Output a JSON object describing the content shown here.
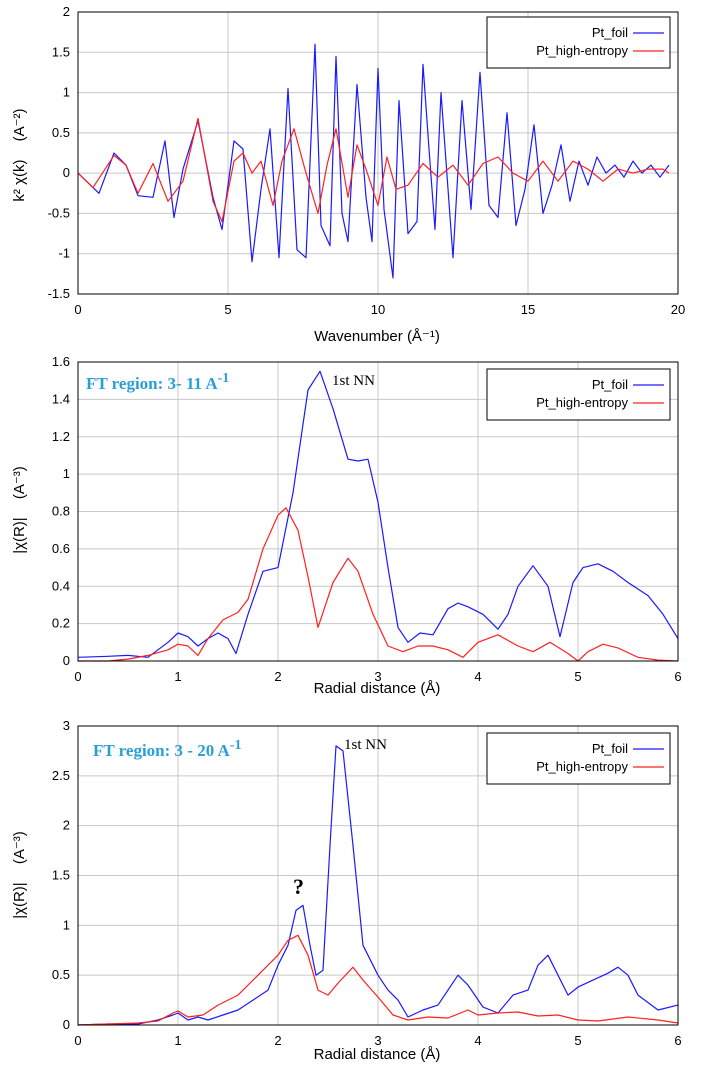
{
  "colors": {
    "pt_foil": "#1a1aff",
    "pt_high_entropy": "#ff2020",
    "grid": "#c8c8c8",
    "region_label": "#2a9fd6"
  },
  "legend": {
    "series1": "Pt_foil",
    "series2": "Pt_high-entropy"
  },
  "chart_data": [
    {
      "type": "line",
      "title": "",
      "xlabel": "Wavenumber   (Å⁻¹)",
      "ylabel_main": "k² χ(k)",
      "ylabel_unit": "(A⁻²)",
      "xlim": [
        0,
        20
      ],
      "ylim": [
        -1.5,
        2
      ],
      "xticks": [
        0,
        5,
        10,
        15,
        20
      ],
      "yticks": [
        -1.5,
        -1,
        -0.5,
        0,
        0.5,
        1,
        1.5,
        2
      ],
      "xtick_labels": [
        "0",
        "5",
        "10",
        "15",
        "20"
      ],
      "ytick_labels": [
        "-1.5",
        "-1",
        "-0.5",
        "0",
        "0.5",
        "1",
        "1.5",
        "2"
      ],
      "series": [
        {
          "name": "Pt_foil",
          "x": [
            0,
            0.5,
            0.7,
            1.2,
            1.6,
            2.0,
            2.5,
            2.9,
            3.2,
            3.5,
            4.0,
            4.5,
            4.8,
            5.2,
            5.5,
            5.8,
            6.1,
            6.4,
            6.7,
            7.0,
            7.3,
            7.6,
            7.9,
            8.1,
            8.4,
            8.6,
            8.8,
            9.0,
            9.3,
            9.6,
            9.8,
            10.0,
            10.2,
            10.5,
            10.7,
            11.0,
            11.3,
            11.5,
            11.7,
            11.9,
            12.1,
            12.5,
            12.8,
            13.1,
            13.4,
            13.7,
            14.0,
            14.3,
            14.6,
            14.9,
            15.2,
            15.5,
            15.8,
            16.1,
            16.4,
            16.7,
            17.0,
            17.3,
            17.6,
            17.9,
            18.2,
            18.5,
            18.8,
            19.1,
            19.4,
            19.7
          ],
          "values": [
            0,
            -0.18,
            -0.25,
            0.25,
            0.1,
            -0.28,
            -0.3,
            0.4,
            -0.55,
            0.05,
            0.65,
            -0.3,
            -0.7,
            0.4,
            0.3,
            -1.1,
            -0.2,
            0.55,
            -1.05,
            1.05,
            -0.95,
            -1.05,
            1.6,
            -0.65,
            -0.9,
            1.45,
            -0.5,
            -0.85,
            1.1,
            -0.3,
            -0.85,
            1.3,
            -0.45,
            -1.3,
            0.9,
            -0.75,
            -0.6,
            1.35,
            0.3,
            -0.7,
            1.0,
            -1.05,
            0.9,
            -0.45,
            1.25,
            -0.4,
            -0.55,
            0.75,
            -0.65,
            -0.2,
            0.6,
            -0.5,
            -0.15,
            0.35,
            -0.35,
            0.15,
            -0.15,
            0.2,
            0.0,
            0.1,
            -0.05,
            0.15,
            0.0,
            0.1,
            -0.05,
            0.1
          ]
        },
        {
          "name": "Pt_high-entropy",
          "x": [
            0,
            0.5,
            1.2,
            1.6,
            2.0,
            2.5,
            3.0,
            3.5,
            4.0,
            4.5,
            4.8,
            5.2,
            5.5,
            5.8,
            6.1,
            6.5,
            6.8,
            7.2,
            7.6,
            8.0,
            8.3,
            8.6,
            9.0,
            9.3,
            9.6,
            10.0,
            10.3,
            10.6,
            11.0,
            11.5,
            12.0,
            12.5,
            13.0,
            13.5,
            14.0,
            14.5,
            15.0,
            15.5,
            16.0,
            16.5,
            17.0,
            17.5,
            18.0,
            18.5,
            19.0,
            19.5,
            19.7
          ],
          "values": [
            0,
            -0.18,
            0.22,
            0.1,
            -0.25,
            0.12,
            -0.35,
            -0.1,
            0.68,
            -0.35,
            -0.6,
            0.15,
            0.25,
            0.0,
            0.15,
            -0.4,
            0.15,
            0.55,
            0.0,
            -0.5,
            0.1,
            0.55,
            -0.3,
            0.35,
            0.05,
            -0.4,
            0.2,
            -0.2,
            -0.15,
            0.12,
            -0.05,
            0.1,
            -0.15,
            0.12,
            0.2,
            0.0,
            -0.1,
            0.15,
            -0.1,
            0.15,
            0.05,
            -0.1,
            0.05,
            0.0,
            0.05,
            0.05,
            0.0
          ]
        }
      ]
    },
    {
      "type": "line",
      "title": "",
      "region_label": "FT region: 3- 11 A",
      "region_sup": "-1",
      "annotation": "1st NN",
      "xlabel": "Radial distance   (Å)",
      "ylabel_main": "|χ(R)|",
      "ylabel_unit": "(A⁻³)",
      "xlim": [
        0,
        6
      ],
      "ylim": [
        0,
        1.6
      ],
      "xticks": [
        0,
        1,
        2,
        3,
        4,
        5,
        6
      ],
      "yticks": [
        0,
        0.2,
        0.4,
        0.6,
        0.8,
        1,
        1.2,
        1.4,
        1.6
      ],
      "xtick_labels": [
        "0",
        "1",
        "2",
        "3",
        "4",
        "5",
        "6"
      ],
      "ytick_labels": [
        "0",
        "0.2",
        "0.4",
        "0.6",
        "0.8",
        "1",
        "1.2",
        "1.4",
        "1.6"
      ],
      "series": [
        {
          "name": "Pt_foil",
          "x": [
            0,
            0.3,
            0.5,
            0.7,
            0.9,
            1.0,
            1.1,
            1.2,
            1.3,
            1.4,
            1.5,
            1.58,
            1.7,
            1.85,
            2.0,
            2.15,
            2.3,
            2.42,
            2.55,
            2.7,
            2.8,
            2.9,
            3.0,
            3.1,
            3.2,
            3.3,
            3.42,
            3.55,
            3.7,
            3.8,
            3.9,
            4.05,
            4.2,
            4.3,
            4.4,
            4.55,
            4.7,
            4.82,
            4.95,
            5.05,
            5.2,
            5.35,
            5.5,
            5.7,
            5.85,
            6.0
          ],
          "values": [
            0.02,
            0.025,
            0.03,
            0.02,
            0.1,
            0.15,
            0.13,
            0.08,
            0.12,
            0.15,
            0.12,
            0.04,
            0.25,
            0.48,
            0.5,
            0.9,
            1.45,
            1.55,
            1.35,
            1.08,
            1.07,
            1.08,
            0.85,
            0.5,
            0.18,
            0.1,
            0.15,
            0.14,
            0.28,
            0.31,
            0.29,
            0.25,
            0.17,
            0.25,
            0.4,
            0.51,
            0.4,
            0.13,
            0.42,
            0.5,
            0.52,
            0.48,
            0.42,
            0.35,
            0.25,
            0.12
          ]
        },
        {
          "name": "Pt_high-entropy",
          "x": [
            0,
            0.3,
            0.5,
            0.7,
            0.9,
            1.0,
            1.1,
            1.2,
            1.3,
            1.45,
            1.6,
            1.7,
            1.85,
            2.0,
            2.08,
            2.2,
            2.3,
            2.4,
            2.55,
            2.7,
            2.8,
            2.95,
            3.1,
            3.25,
            3.4,
            3.55,
            3.7,
            3.85,
            4.0,
            4.2,
            4.4,
            4.55,
            4.72,
            4.9,
            5.0,
            5.1,
            5.25,
            5.4,
            5.6,
            5.8,
            6.0
          ],
          "values": [
            0,
            0,
            0.01,
            0.03,
            0.06,
            0.09,
            0.08,
            0.03,
            0.12,
            0.22,
            0.26,
            0.33,
            0.6,
            0.78,
            0.82,
            0.7,
            0.45,
            0.18,
            0.42,
            0.55,
            0.48,
            0.25,
            0.08,
            0.05,
            0.08,
            0.08,
            0.06,
            0.02,
            0.1,
            0.14,
            0.08,
            0.05,
            0.1,
            0.04,
            0.0,
            0.05,
            0.09,
            0.07,
            0.02,
            0.005,
            0.0
          ]
        }
      ]
    },
    {
      "type": "line",
      "title": "",
      "region_label": "FT region: 3 - 20 A",
      "region_sup": "-1",
      "annotation": "1st NN",
      "question_mark": "?",
      "xlabel": "Radial distance   (Å)",
      "ylabel_main": "|χ(R)|",
      "ylabel_unit": "(A⁻³)",
      "xlim": [
        0,
        6
      ],
      "ylim": [
        0,
        3
      ],
      "xticks": [
        0,
        1,
        2,
        3,
        4,
        5,
        6
      ],
      "yticks": [
        0,
        0.5,
        1,
        1.5,
        2,
        2.5,
        3
      ],
      "xtick_labels": [
        "0",
        "1",
        "2",
        "3",
        "4",
        "5",
        "6"
      ],
      "ytick_labels": [
        "0",
        "0.5",
        "1",
        "1.5",
        "2",
        "2.5",
        "3"
      ],
      "series": [
        {
          "name": "Pt_foil",
          "x": [
            0,
            0.3,
            0.6,
            0.8,
            0.95,
            1.0,
            1.1,
            1.2,
            1.3,
            1.45,
            1.6,
            1.75,
            1.9,
            2.0,
            2.1,
            2.18,
            2.25,
            2.32,
            2.38,
            2.45,
            2.52,
            2.58,
            2.65,
            2.75,
            2.85,
            3.0,
            3.1,
            3.2,
            3.3,
            3.45,
            3.6,
            3.7,
            3.8,
            3.9,
            4.05,
            4.2,
            4.35,
            4.5,
            4.6,
            4.7,
            4.8,
            4.9,
            5.0,
            5.15,
            5.3,
            5.4,
            5.5,
            5.6,
            5.8,
            6.0
          ],
          "values": [
            0,
            0.01,
            0.01,
            0.05,
            0.1,
            0.12,
            0.05,
            0.08,
            0.05,
            0.1,
            0.15,
            0.25,
            0.35,
            0.6,
            0.8,
            1.15,
            1.2,
            0.8,
            0.5,
            0.55,
            1.8,
            2.8,
            2.75,
            1.8,
            0.8,
            0.5,
            0.35,
            0.25,
            0.08,
            0.15,
            0.2,
            0.35,
            0.5,
            0.4,
            0.18,
            0.12,
            0.3,
            0.35,
            0.6,
            0.7,
            0.5,
            0.3,
            0.38,
            0.45,
            0.52,
            0.58,
            0.5,
            0.3,
            0.15,
            0.2
          ]
        },
        {
          "name": "Pt_high-entropy",
          "x": [
            0,
            0.3,
            0.6,
            0.8,
            0.95,
            1.0,
            1.1,
            1.25,
            1.4,
            1.6,
            1.8,
            2.0,
            2.1,
            2.2,
            2.3,
            2.4,
            2.5,
            2.6,
            2.75,
            2.85,
            3.0,
            3.15,
            3.3,
            3.5,
            3.7,
            3.9,
            4.0,
            4.2,
            4.4,
            4.6,
            4.8,
            5.0,
            5.2,
            5.5,
            5.8,
            6.0
          ],
          "values": [
            0,
            0.01,
            0.02,
            0.04,
            0.12,
            0.14,
            0.08,
            0.1,
            0.2,
            0.3,
            0.5,
            0.7,
            0.85,
            0.9,
            0.7,
            0.35,
            0.3,
            0.42,
            0.58,
            0.45,
            0.28,
            0.1,
            0.05,
            0.08,
            0.07,
            0.15,
            0.1,
            0.12,
            0.13,
            0.09,
            0.1,
            0.05,
            0.04,
            0.08,
            0.05,
            0.02
          ]
        }
      ]
    }
  ]
}
